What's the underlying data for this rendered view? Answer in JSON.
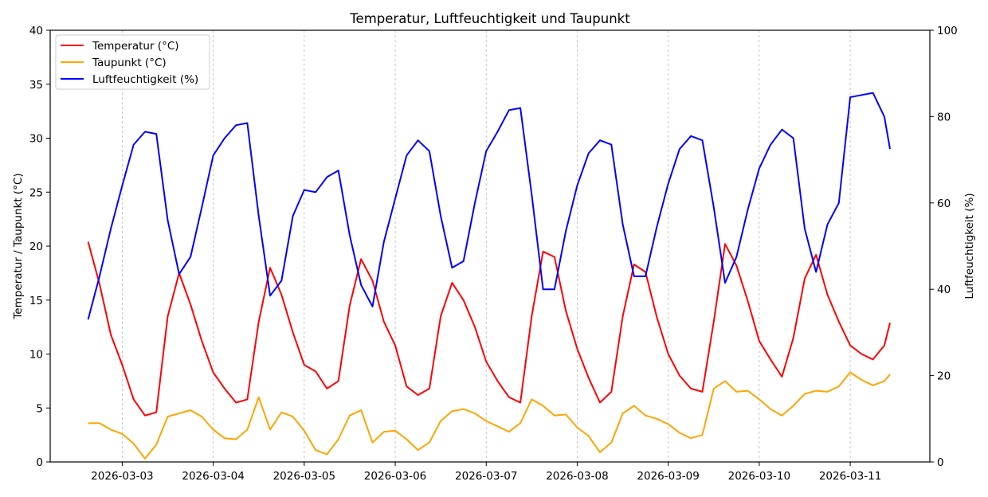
{
  "chart_data": {
    "type": "line",
    "title": "Temperatur, Luftfeuchtigkeit und Taupunkt",
    "xlabel": "",
    "ylabel": "Temperatur / Taupunkt (°C)",
    "ylabel_right": "Luftfeuchtigkeit (%)",
    "xlim": [
      "2026-03-02 05:00",
      "2026-03-11 21:00"
    ],
    "ylim": [
      0,
      40
    ],
    "ylim_right": [
      0,
      100
    ],
    "x_ticks": [
      "2026-03-03",
      "2026-03-04",
      "2026-03-05",
      "2026-03-06",
      "2026-03-07",
      "2026-03-08",
      "2026-03-09",
      "2026-03-10",
      "2026-03-11"
    ],
    "y_ticks": [
      "0",
      "5",
      "10",
      "15",
      "20",
      "25",
      "30",
      "35",
      "40"
    ],
    "y_ticks_right": [
      "0",
      "20",
      "40",
      "60",
      "80",
      "100"
    ],
    "grid": "vertical dashed at x ticks",
    "legend_position": "top-left",
    "x": [
      "2026-03-02 15:00",
      "2026-03-02 18:00",
      "2026-03-02 21:00",
      "2026-03-03 00:00",
      "2026-03-03 03:00",
      "2026-03-03 06:00",
      "2026-03-03 09:00",
      "2026-03-03 12:00",
      "2026-03-03 15:00",
      "2026-03-03 18:00",
      "2026-03-03 21:00",
      "2026-03-04 00:00",
      "2026-03-04 03:00",
      "2026-03-04 06:00",
      "2026-03-04 09:00",
      "2026-03-04 12:00",
      "2026-03-04 15:00",
      "2026-03-04 18:00",
      "2026-03-04 21:00",
      "2026-03-05 00:00",
      "2026-03-05 03:00",
      "2026-03-05 06:00",
      "2026-03-05 09:00",
      "2026-03-05 12:00",
      "2026-03-05 15:00",
      "2026-03-05 18:00",
      "2026-03-05 21:00",
      "2026-03-06 00:00",
      "2026-03-06 03:00",
      "2026-03-06 06:00",
      "2026-03-06 09:00",
      "2026-03-06 12:00",
      "2026-03-06 15:00",
      "2026-03-06 18:00",
      "2026-03-06 21:00",
      "2026-03-07 00:00",
      "2026-03-07 03:00",
      "2026-03-07 06:00",
      "2026-03-07 09:00",
      "2026-03-07 12:00",
      "2026-03-07 15:00",
      "2026-03-07 18:00",
      "2026-03-07 21:00",
      "2026-03-08 00:00",
      "2026-03-08 03:00",
      "2026-03-08 06:00",
      "2026-03-08 09:00",
      "2026-03-08 12:00",
      "2026-03-08 15:00",
      "2026-03-08 18:00",
      "2026-03-08 21:00",
      "2026-03-09 00:00",
      "2026-03-09 03:00",
      "2026-03-09 06:00",
      "2026-03-09 09:00",
      "2026-03-09 12:00",
      "2026-03-09 15:00",
      "2026-03-09 18:00",
      "2026-03-09 21:00",
      "2026-03-10 00:00",
      "2026-03-10 03:00",
      "2026-03-10 06:00",
      "2026-03-10 09:00",
      "2026-03-10 12:00",
      "2026-03-10 15:00",
      "2026-03-10 18:00",
      "2026-03-10 21:00",
      "2026-03-11 00:00",
      "2026-03-11 03:00",
      "2026-03-11 06:00",
      "2026-03-11 09:00",
      "2026-03-11 10:30"
    ],
    "series": [
      {
        "name": "Temperatur (°C)",
        "axis": "left",
        "color": "#ff0000",
        "values": [
          20.4,
          16.5,
          11.8,
          9.0,
          5.8,
          4.3,
          4.6,
          13.5,
          17.5,
          14.6,
          11.2,
          8.3,
          6.8,
          5.5,
          5.8,
          13.0,
          18.0,
          15.5,
          12.0,
          9.0,
          8.4,
          6.8,
          7.5,
          14.5,
          18.8,
          16.8,
          13.0,
          10.8,
          7.0,
          6.2,
          6.8,
          13.5,
          16.6,
          15.0,
          12.5,
          9.3,
          7.5,
          6.0,
          5.5,
          13.5,
          19.5,
          19.0,
          14.0,
          10.5,
          7.8,
          5.5,
          6.5,
          13.5,
          18.3,
          17.6,
          13.4,
          10.0,
          8.0,
          6.8,
          6.5,
          13.0,
          20.2,
          18.2,
          14.9,
          11.2,
          9.5,
          7.9,
          11.5,
          17.0,
          19.2,
          15.5,
          13.0,
          10.8,
          10.0,
          9.5,
          10.8,
          12.9
        ]
      },
      {
        "name": "Taupunkt (°C)",
        "axis": "left",
        "color": "#ffa500",
        "values": [
          3.6,
          3.6,
          3.0,
          2.6,
          1.7,
          0.3,
          1.6,
          4.2,
          4.5,
          4.8,
          4.2,
          3.0,
          2.2,
          2.1,
          3.0,
          6.0,
          3.0,
          4.6,
          4.2,
          2.9,
          1.1,
          0.7,
          2.1,
          4.3,
          4.8,
          1.8,
          2.8,
          2.9,
          2.1,
          1.1,
          1.8,
          3.8,
          4.7,
          4.9,
          4.5,
          3.8,
          3.3,
          2.8,
          3.6,
          5.8,
          5.2,
          4.3,
          4.4,
          3.2,
          2.4,
          0.9,
          1.8,
          4.5,
          5.2,
          4.3,
          4.0,
          3.5,
          2.7,
          2.2,
          2.5,
          6.8,
          7.5,
          6.5,
          6.6,
          5.8,
          4.9,
          4.3,
          5.2,
          6.3,
          6.6,
          6.5,
          7.0,
          8.3,
          7.6,
          7.1,
          7.5,
          8.1
        ]
      },
      {
        "name": "Luftfeuchtigkeit (%)",
        "axis": "right",
        "color": "#0000ff",
        "values": [
          33,
          43,
          54,
          64,
          73.5,
          76.5,
          76,
          56,
          43.5,
          47.5,
          59,
          71,
          75,
          78,
          78.5,
          57,
          38.5,
          42,
          57,
          63,
          62.5,
          66,
          67.5,
          52.5,
          41,
          36,
          51,
          61,
          71,
          74.5,
          72,
          57,
          45,
          46.5,
          60,
          72,
          76.5,
          81.5,
          82,
          62,
          40,
          40,
          53.5,
          64,
          71.5,
          74.5,
          73.5,
          55,
          43,
          43,
          54.5,
          64.5,
          72.5,
          75.5,
          74.5,
          59,
          41.5,
          47.5,
          58.5,
          68,
          73.5,
          77,
          75,
          54,
          44,
          55,
          60,
          84.5,
          85,
          85.5,
          80,
          72.5
        ]
      }
    ]
  }
}
